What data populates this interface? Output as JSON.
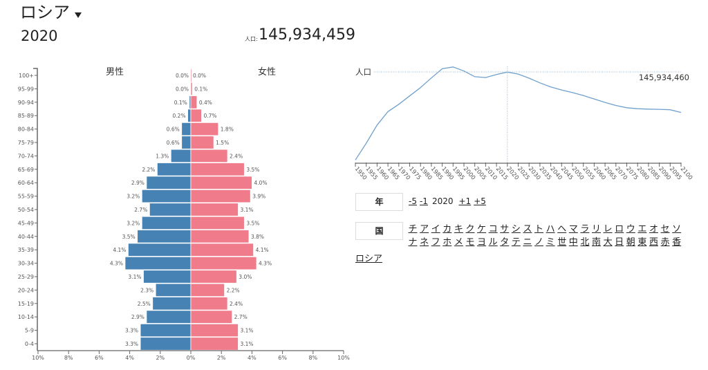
{
  "header": {
    "country": "ロシア",
    "year": "2020",
    "population_label": "人口:",
    "population": "145,934,459"
  },
  "colors": {
    "male": "#4682b4",
    "female": "#f07b8a",
    "line": "#6fa0cc",
    "guide": "#9bbbd8",
    "axis": "#666666"
  },
  "controls": {
    "year_label": "年",
    "year_back_5": "-5",
    "year_back_1": "-1",
    "year_current": "2020",
    "year_fwd_1": "+1",
    "year_fwd_5": "+5",
    "country_label": "国",
    "country_index": [
      "チ",
      "ア",
      "イ",
      "カ",
      "キ",
      "ク",
      "ケ",
      "コ",
      "サ",
      "シ",
      "ス",
      "ト",
      "ハ",
      "ヘ",
      "マ",
      "ラ",
      "リ",
      "レ",
      "ロ",
      "ウ",
      "エ",
      "オ",
      "セ",
      "ソ",
      "ナ",
      "ネ",
      "フ",
      "ホ",
      "メ",
      "モ",
      "ヨ",
      "ル",
      "タ",
      "テ",
      "ニ",
      "ノ",
      "ミ",
      "世",
      "中",
      "北",
      "南",
      "大",
      "日",
      "朝",
      "東",
      "西",
      "赤",
      "香"
    ],
    "selected_country": "ロシア"
  },
  "chart_data": [
    {
      "type": "bar",
      "orientation": "horizontal-pyramid",
      "title": "",
      "series_titles": {
        "male": "男性",
        "female": "女性"
      },
      "categories": [
        "100+",
        "95-99",
        "90-94",
        "85-89",
        "80-84",
        "75-79",
        "70-74",
        "65-69",
        "60-64",
        "55-59",
        "50-54",
        "45-49",
        "40-44",
        "35-39",
        "30-34",
        "25-29",
        "20-24",
        "15-19",
        "10-14",
        "5-9",
        "0-4"
      ],
      "series": [
        {
          "name": "男性",
          "values": [
            0.0,
            0.0,
            0.1,
            0.2,
            0.6,
            0.6,
            1.3,
            2.2,
            2.9,
            3.2,
            2.7,
            3.2,
            3.5,
            4.1,
            4.3,
            3.1,
            2.3,
            2.5,
            2.9,
            3.3,
            3.3
          ],
          "labels": [
            "0.0%",
            "0.0%",
            "0.1%",
            "0.2%",
            "0.6%",
            "0.6%",
            "1.3%",
            "2.2%",
            "2.9%",
            "3.2%",
            "2.7%",
            "3.2%",
            "3.5%",
            "4.1%",
            "4.3%",
            "3.1%",
            "2.3%",
            "2.5%",
            "2.9%",
            "3.3%",
            "3.3%"
          ]
        },
        {
          "name": "女性",
          "values": [
            0.0,
            0.1,
            0.4,
            0.7,
            1.8,
            1.5,
            2.4,
            3.5,
            4.0,
            3.9,
            3.1,
            3.5,
            3.8,
            4.1,
            4.3,
            3.0,
            2.2,
            2.4,
            2.7,
            3.1,
            3.1
          ],
          "labels": [
            "0.0%",
            "0.1%",
            "0.4%",
            "0.7%",
            "1.8%",
            "1.5%",
            "2.4%",
            "3.5%",
            "4.0%",
            "3.9%",
            "3.1%",
            "3.5%",
            "3.8%",
            "4.1%",
            "4.3%",
            "3.0%",
            "2.2%",
            "2.4%",
            "2.7%",
            "3.1%",
            "3.1%"
          ]
        }
      ],
      "xlim": [
        -10,
        10
      ],
      "xticks": [
        -10,
        -8,
        -6,
        -4,
        -2,
        0,
        2,
        4,
        6,
        8,
        10
      ],
      "xtick_labels": [
        "10%",
        "8%",
        "6%",
        "4%",
        "2%",
        "0%",
        "2%",
        "4%",
        "6%",
        "8%",
        "10%"
      ],
      "grid": false
    },
    {
      "type": "line",
      "title": "",
      "ylabel": "人口",
      "x": [
        1950,
        1955,
        1960,
        1965,
        1970,
        1975,
        1980,
        1985,
        1990,
        1995,
        2000,
        2005,
        2010,
        2015,
        2020,
        2025,
        2030,
        2035,
        2040,
        2045,
        2050,
        2055,
        2060,
        2065,
        2070,
        2075,
        2080,
        2085,
        2090,
        2095,
        2100
      ],
      "xtick_labels": [
        "1950",
        "1955",
        "1960",
        "1965",
        "1970",
        "1975",
        "1980",
        "1985",
        "1990",
        "1995",
        "2000",
        "2005",
        "2010",
        "2015",
        "2020",
        "2025",
        "2030",
        "2035",
        "2040",
        "2045",
        "2050",
        "2055",
        "2060",
        "2065",
        "2070",
        "2075",
        "2080",
        "2085",
        "2090",
        "2095",
        "2100"
      ],
      "series": [
        {
          "name": "人口 (millions)",
          "values": [
            102.8,
            111.0,
            119.9,
            126.5,
            130.1,
            134.2,
            138.3,
            143.0,
            147.5,
            148.4,
            146.4,
            143.6,
            143.2,
            144.7,
            145.9,
            144.9,
            142.9,
            140.6,
            138.6,
            137.1,
            135.8,
            134.4,
            132.7,
            131.0,
            129.5,
            128.4,
            127.9,
            127.7,
            127.6,
            127.4,
            126.1
          ]
        }
      ],
      "xlim": [
        1950,
        2100
      ],
      "ylim": [
        101.2,
        150.7
      ],
      "highlight": {
        "x": 2020,
        "value": 145.93446,
        "label": "145,934,460"
      },
      "grid": false
    }
  ]
}
